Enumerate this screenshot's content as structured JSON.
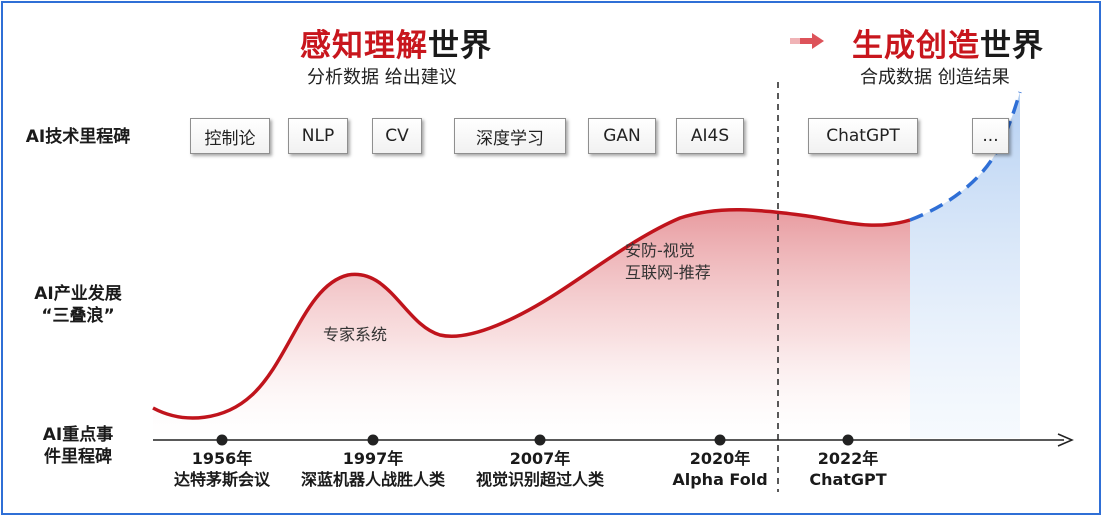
{
  "header_left": {
    "red": "感知理解",
    "black": "世界",
    "subtitle": "分析数据 给出建议"
  },
  "header_right": {
    "red": "生成创造",
    "black": "世界",
    "subtitle": "合成数据 创造结果"
  },
  "row_labels": {
    "tech": "AI技术里程碑",
    "industry_line1": "AI产业发展",
    "industry_line2": "“三叠浪”",
    "events_line1": "AI重点事",
    "events_line2": "件里程碑"
  },
  "milestones": [
    "控制论",
    "NLP",
    "CV",
    "深度学习",
    "GAN",
    "AI4S",
    "ChatGPT",
    "..."
  ],
  "wave_notes": {
    "expert": "专家系统",
    "security_line1": "安防-视觉",
    "security_line2": "互联网-推荐"
  },
  "events": [
    {
      "year": "1956年",
      "name": "达特茅斯会议"
    },
    {
      "year": "1997年",
      "name": "深蓝机器人战胜人类"
    },
    {
      "year": "2007年",
      "name": "视觉识别超过人类"
    },
    {
      "year": "2020年",
      "name": "Alpha Fold"
    },
    {
      "year": "2022年",
      "name": "ChatGPT"
    }
  ],
  "colors": {
    "accent_red": "#c8161d",
    "curve_red": "#c0141c",
    "future_blue": "#2f6fd6",
    "frame_blue": "#2f6fd6"
  }
}
